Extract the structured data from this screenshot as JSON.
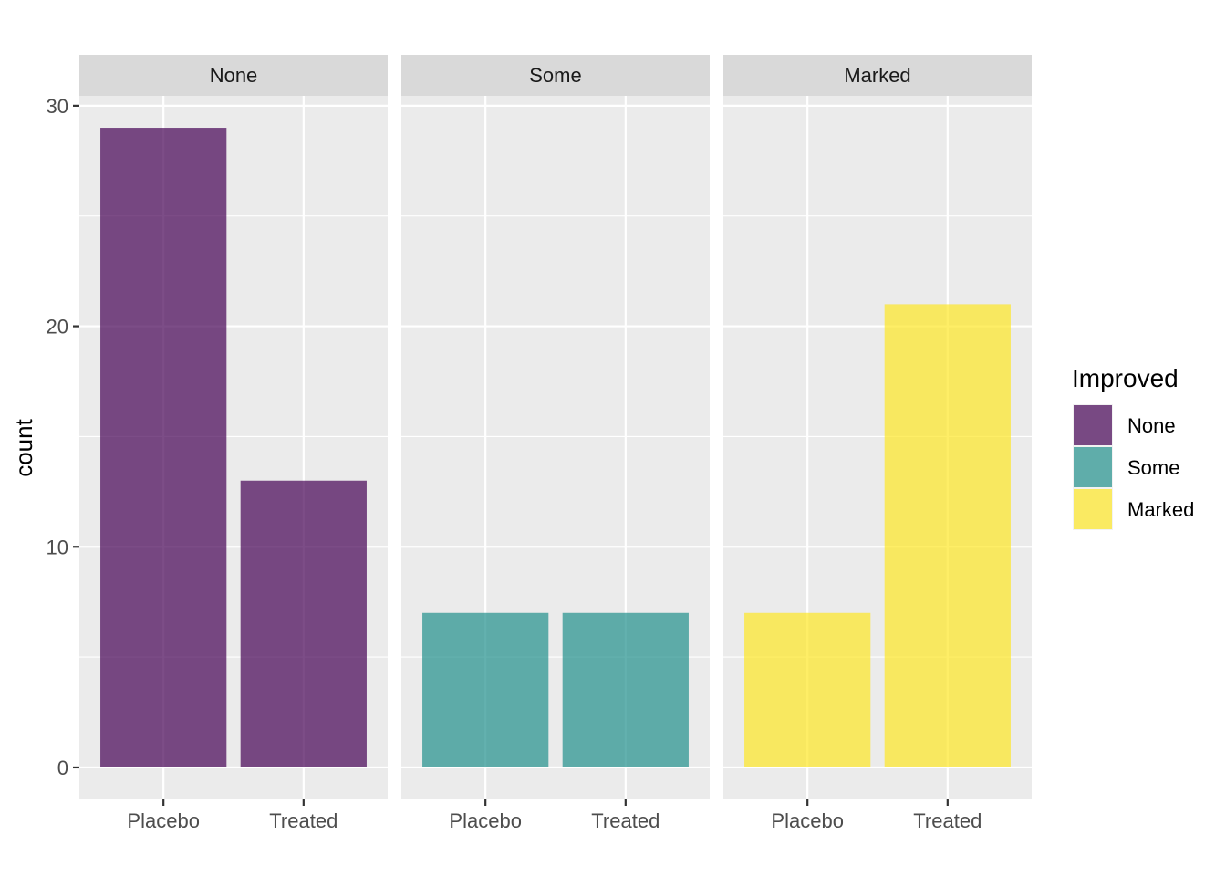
{
  "chart_data": {
    "type": "bar",
    "facet_variable": "Improved",
    "facets": [
      "None",
      "Some",
      "Marked"
    ],
    "categories": [
      "Placebo",
      "Treated"
    ],
    "series": [
      {
        "name": "None",
        "facet": "None",
        "values": [
          29,
          13
        ],
        "color": "#440154"
      },
      {
        "name": "Some",
        "facet": "Some",
        "values": [
          7,
          7
        ],
        "color": "#21908C"
      },
      {
        "name": "Marked",
        "facet": "Marked",
        "values": [
          7,
          21
        ],
        "color": "#FDE725"
      }
    ],
    "xlabel": "",
    "ylabel": "count",
    "ylim": [
      -1.45,
      30.45
    ],
    "yticks": [
      0,
      10,
      20,
      30
    ],
    "grid": true,
    "bar_opacity": 0.7,
    "legend": {
      "title": "Improved",
      "placement": "right",
      "entries": [
        "None",
        "Some",
        "Marked"
      ]
    }
  }
}
